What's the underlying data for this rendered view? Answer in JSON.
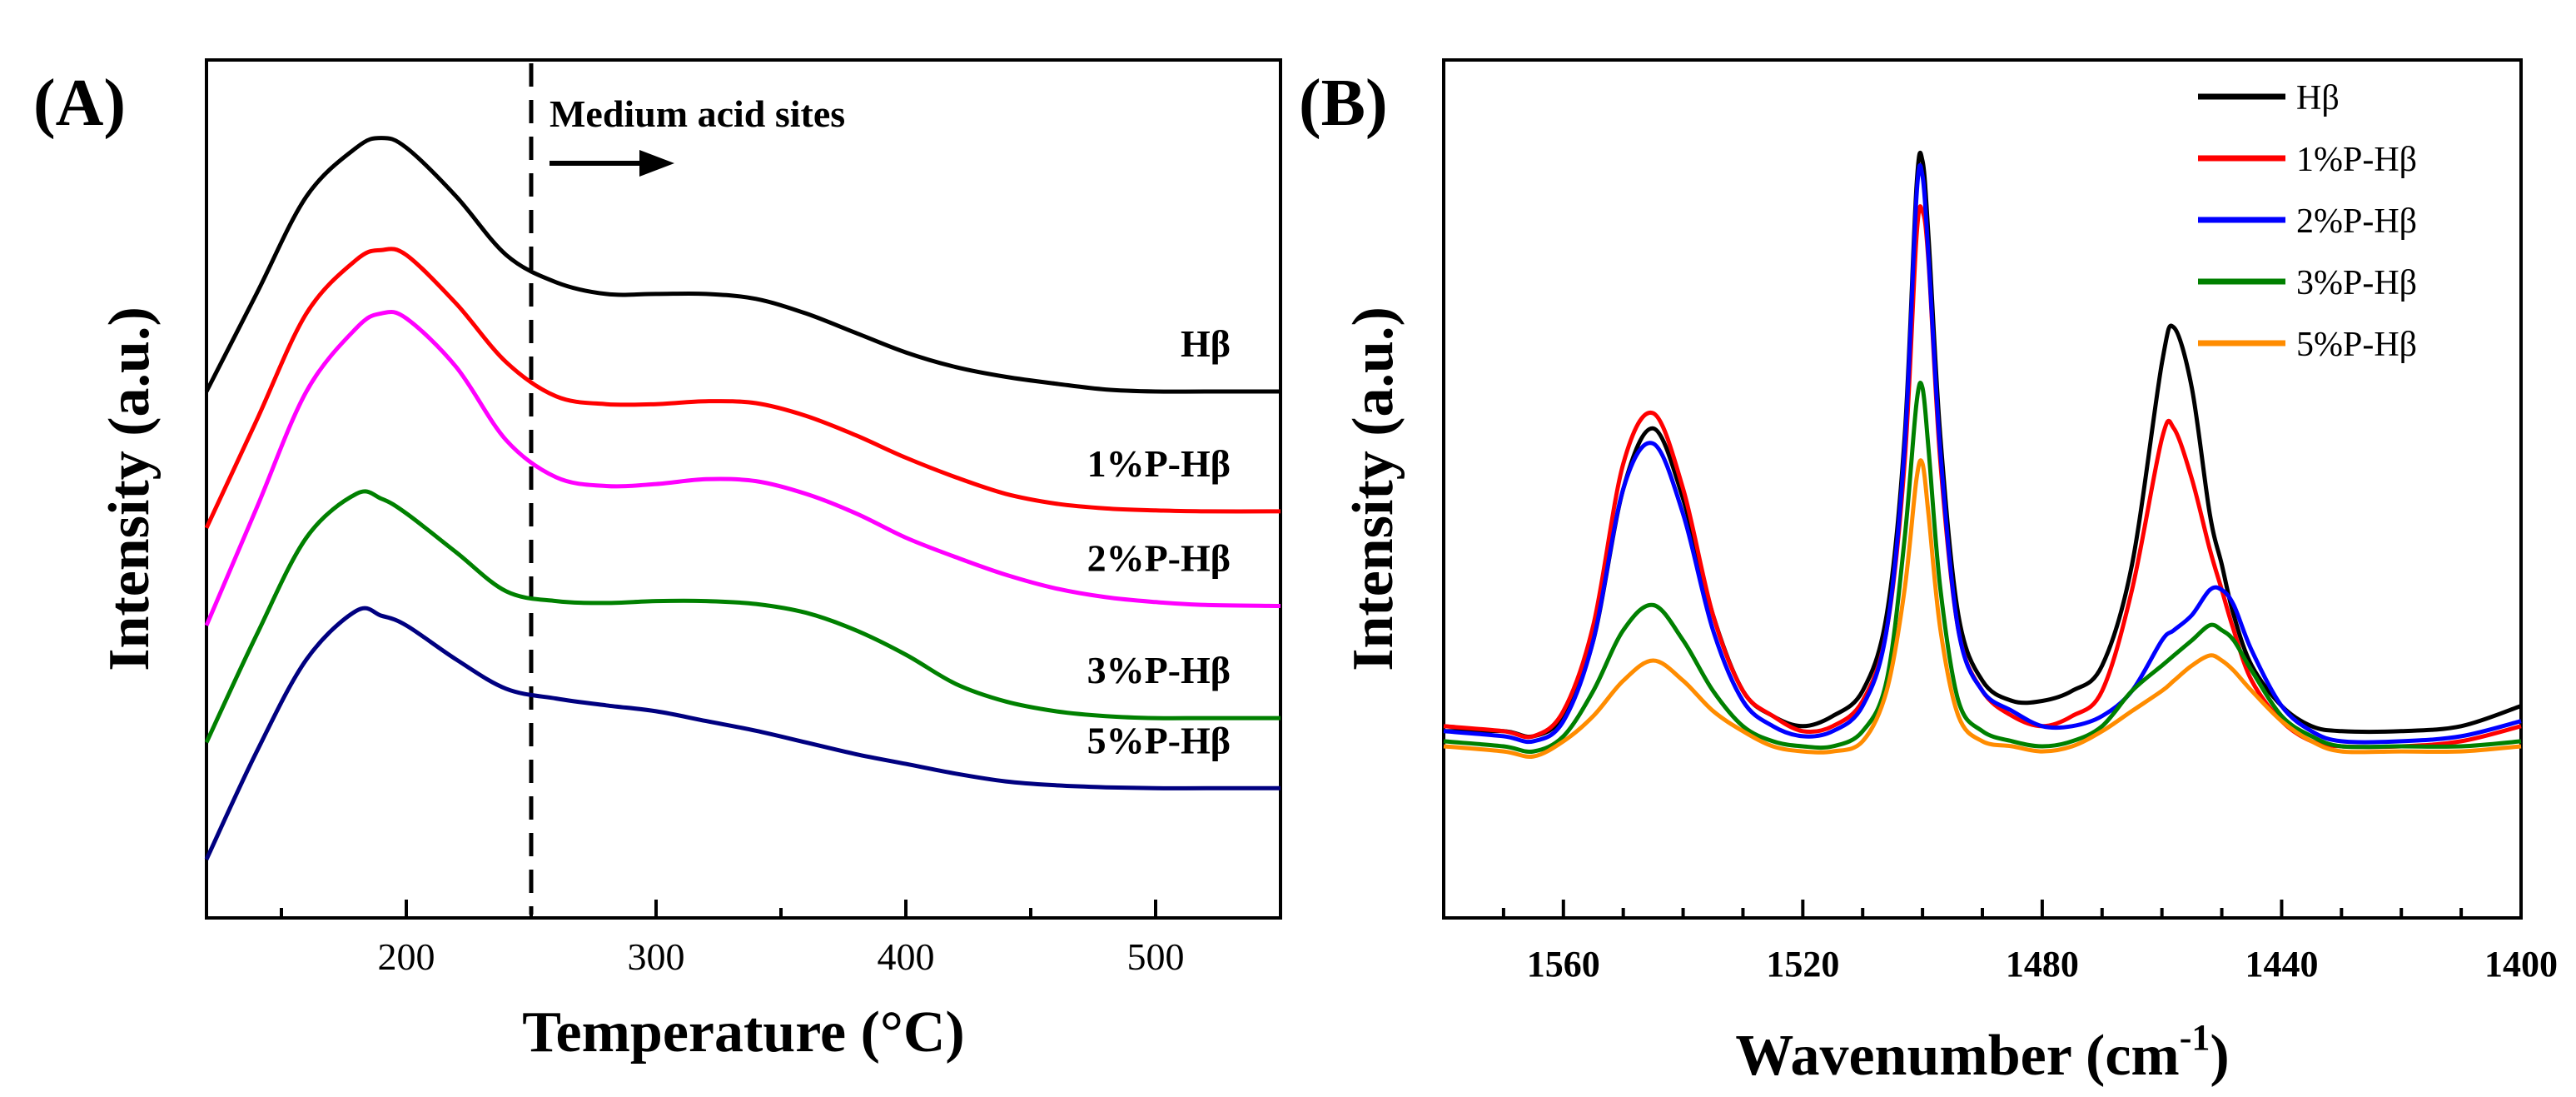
{
  "chart_data": [
    {
      "panel": "(A)",
      "type": "line",
      "xlabel": "Temperature (°C)",
      "ylabel": "Intensity (a.u.)",
      "xlim": [
        120,
        550
      ],
      "x_ticks": [
        200,
        300,
        400,
        500
      ],
      "y_ticks": [],
      "annotation": {
        "text": "Medium acid sites",
        "x": 250,
        "arrow": "right"
      },
      "vline_x": 250,
      "x": [
        120,
        140,
        160,
        180,
        190,
        200,
        220,
        240,
        260,
        280,
        300,
        320,
        340,
        360,
        380,
        400,
        420,
        440,
        460,
        480,
        500,
        520,
        550
      ],
      "series": [
        {
          "name": "Hβ",
          "color": "#000000",
          "values": [
            3.6,
            4.6,
            5.6,
            6.1,
            6.2,
            6.1,
            5.6,
            5.0,
            4.72,
            4.6,
            4.6,
            4.6,
            4.55,
            4.4,
            4.2,
            4.0,
            3.85,
            3.75,
            3.68,
            3.62,
            3.6,
            3.6,
            3.6
          ]
        },
        {
          "name": "1%P-Hβ",
          "color": "#ff0000",
          "values": [
            2.2,
            3.3,
            4.4,
            4.95,
            5.05,
            5.0,
            4.5,
            3.9,
            3.55,
            3.47,
            3.47,
            3.5,
            3.48,
            3.35,
            3.15,
            2.92,
            2.72,
            2.55,
            2.45,
            2.4,
            2.38,
            2.37,
            2.37
          ]
        },
        {
          "name": "2%P-Hβ",
          "color": "#ff00ff",
          "values": [
            1.2,
            2.4,
            3.6,
            4.25,
            4.4,
            4.35,
            3.85,
            3.1,
            2.72,
            2.63,
            2.65,
            2.7,
            2.68,
            2.55,
            2.35,
            2.1,
            1.9,
            1.72,
            1.58,
            1.49,
            1.44,
            1.41,
            1.4
          ]
        },
        {
          "name": "3%P-Hβ",
          "color": "#008000",
          "values": [
            0.0,
            1.1,
            2.1,
            2.55,
            2.5,
            2.35,
            1.95,
            1.55,
            1.45,
            1.43,
            1.45,
            1.45,
            1.42,
            1.33,
            1.15,
            0.9,
            0.6,
            0.42,
            0.32,
            0.27,
            0.25,
            0.25,
            0.25
          ]
        },
        {
          "name": "5%P-Hβ",
          "color": "#000080",
          "values": [
            -1.2,
            -0.1,
            0.85,
            1.35,
            1.3,
            1.2,
            0.85,
            0.55,
            0.45,
            0.38,
            0.32,
            0.22,
            0.12,
            0.0,
            -0.12,
            -0.22,
            -0.32,
            -0.4,
            -0.44,
            -0.46,
            -0.47,
            -0.47,
            -0.47
          ]
        }
      ]
    },
    {
      "panel": "(B)",
      "type": "line",
      "xlabel": "Wavenumber (cm⁻¹)",
      "ylabel": "Intensity (a.u.)",
      "xlim": [
        1580,
        1400
      ],
      "x_ticks": [
        1560,
        1520,
        1480,
        1440,
        1400
      ],
      "y_ticks": [],
      "legend_position": "top-right",
      "x": [
        1580,
        1570,
        1565,
        1560,
        1555,
        1550,
        1545,
        1540,
        1535,
        1530,
        1525,
        1520,
        1515,
        1510,
        1506,
        1503,
        1501,
        1500,
        1499,
        1497,
        1494,
        1490,
        1485,
        1480,
        1475,
        1470,
        1465,
        1460,
        1458,
        1455,
        1452,
        1450,
        1448,
        1445,
        1440,
        1435,
        1430,
        1420,
        1410,
        1400
      ],
      "series": [
        {
          "name": "Hβ",
          "color": "#000000",
          "values": [
            0.02,
            0.02,
            0.01,
            0.05,
            0.2,
            0.5,
            0.62,
            0.48,
            0.25,
            0.1,
            0.05,
            0.03,
            0.05,
            0.1,
            0.25,
            0.6,
            1.1,
            1.15,
            1.0,
            0.6,
            0.25,
            0.12,
            0.08,
            0.08,
            0.1,
            0.15,
            0.35,
            0.75,
            0.82,
            0.7,
            0.45,
            0.35,
            0.25,
            0.15,
            0.07,
            0.03,
            0.02,
            0.02,
            0.03,
            0.07
          ]
        },
        {
          "name": "1%P-Hβ",
          "color": "#ff0000",
          "values": [
            0.03,
            0.02,
            0.01,
            0.06,
            0.23,
            0.55,
            0.65,
            0.5,
            0.25,
            0.1,
            0.05,
            0.02,
            0.03,
            0.08,
            0.22,
            0.55,
            1.0,
            1.05,
            0.95,
            0.55,
            0.22,
            0.1,
            0.05,
            0.03,
            0.05,
            0.1,
            0.3,
            0.6,
            0.62,
            0.52,
            0.38,
            0.3,
            0.22,
            0.12,
            0.04,
            0.0,
            -0.01,
            -0.01,
            0.0,
            0.03
          ]
        },
        {
          "name": "2%P-Hβ",
          "color": "#0000ff",
          "values": [
            0.02,
            0.01,
            0.0,
            0.04,
            0.2,
            0.5,
            0.59,
            0.45,
            0.22,
            0.08,
            0.03,
            0.01,
            0.02,
            0.07,
            0.22,
            0.58,
            1.08,
            1.12,
            0.96,
            0.57,
            0.22,
            0.1,
            0.06,
            0.03,
            0.03,
            0.05,
            0.1,
            0.2,
            0.22,
            0.25,
            0.3,
            0.3,
            0.27,
            0.18,
            0.07,
            0.02,
            0.0,
            0.0,
            0.01,
            0.04
          ]
        },
        {
          "name": "3%P-Hβ",
          "color": "#008000",
          "values": [
            0.0,
            -0.01,
            -0.02,
            0.01,
            0.1,
            0.22,
            0.27,
            0.2,
            0.1,
            0.03,
            0.0,
            -0.01,
            -0.01,
            0.02,
            0.12,
            0.4,
            0.67,
            0.7,
            0.58,
            0.3,
            0.08,
            0.02,
            0.0,
            -0.01,
            0.0,
            0.03,
            0.1,
            0.15,
            0.17,
            0.2,
            0.23,
            0.22,
            0.2,
            0.14,
            0.05,
            0.01,
            -0.01,
            -0.01,
            -0.01,
            0.0
          ]
        },
        {
          "name": "5%P-Hβ",
          "color": "#ff8c00",
          "values": [
            -0.01,
            -0.02,
            -0.03,
            0.0,
            0.05,
            0.12,
            0.16,
            0.12,
            0.06,
            0.02,
            -0.01,
            -0.02,
            -0.02,
            0.0,
            0.1,
            0.3,
            0.52,
            0.55,
            0.45,
            0.22,
            0.05,
            0.0,
            -0.01,
            -0.02,
            -0.01,
            0.02,
            0.06,
            0.1,
            0.12,
            0.15,
            0.17,
            0.16,
            0.14,
            0.1,
            0.04,
            0.0,
            -0.02,
            -0.02,
            -0.02,
            -0.01
          ]
        }
      ]
    }
  ]
}
